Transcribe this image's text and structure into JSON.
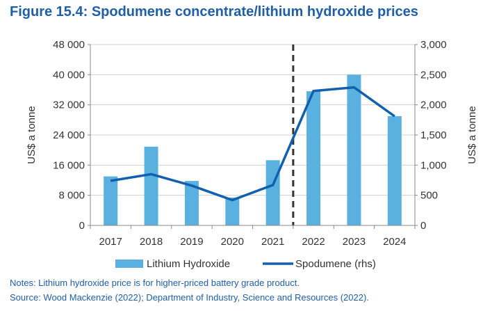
{
  "title": "Figure 15.4: Spodumene concentrate/lithium hydroxide prices",
  "notes": "Notes: Lithium hydroxide price is for higher-priced battery grade product.",
  "source": "Source: Wood Mackenzie (2022); Department of Industry, Science and Resources (2022).",
  "colors": {
    "bars": "#5ab1e0",
    "line": "#1060ad",
    "divider": "#333333",
    "title": "#1f5fa8"
  },
  "chart_data": {
    "type": "bar+line",
    "categories": [
      "2017",
      "2018",
      "2019",
      "2020",
      "2021",
      "2022",
      "2023",
      "2024"
    ],
    "series": [
      {
        "name": "Lithium Hydroxide",
        "type": "bar",
        "axis": "left",
        "values": [
          13000,
          20900,
          11800,
          7400,
          17300,
          35600,
          40000,
          29000
        ]
      },
      {
        "name": "Spodumene (rhs)",
        "type": "line",
        "axis": "right",
        "values": [
          740,
          850,
          660,
          420,
          670,
          2230,
          2290,
          1810
        ]
      }
    ],
    "ylabel": "US$ a tonne",
    "y2label": "US$ a tonne",
    "ylim": [
      0,
      48000
    ],
    "y2lim": [
      0,
      3000
    ],
    "yticks": [
      "0",
      "8 000",
      "16 000",
      "24 000",
      "32 000",
      "40 000",
      "48 000"
    ],
    "y2ticks": [
      "0",
      "500",
      "1,000",
      "1,500",
      "2,000",
      "2,500",
      "3,000"
    ],
    "divider_after_category": "2021",
    "grid": "horizontal",
    "legend_position": "bottom"
  }
}
